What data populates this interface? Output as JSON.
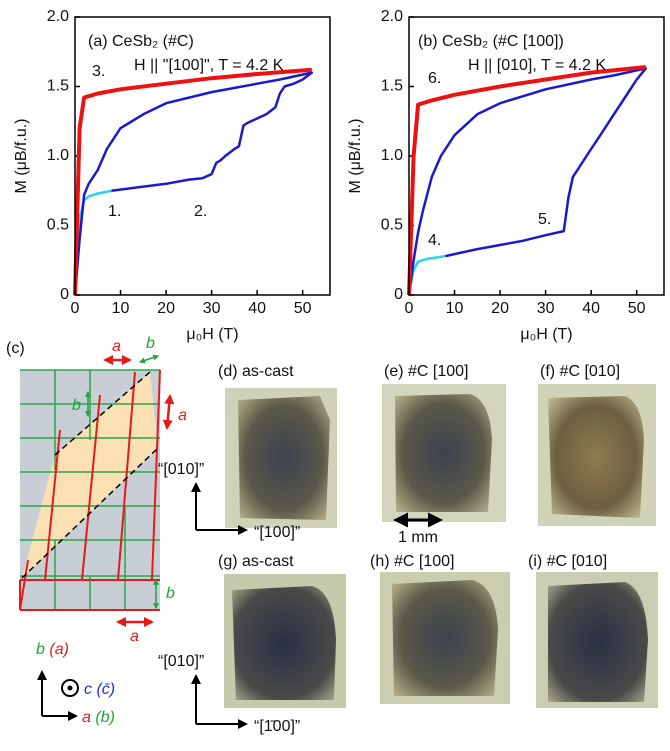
{
  "chart_data": [
    {
      "type": "line",
      "title": "(a) CeSb₂ (#C)",
      "subtitle": "H || \"[100]\", T = 4.2 K",
      "x_label": "μ₀H (T)",
      "y_label": "M (μB/f.u.)",
      "xlim": [
        0,
        56
      ],
      "ylim": [
        0,
        2.0
      ],
      "xticks": [
        0,
        10,
        20,
        30,
        40,
        50
      ],
      "yticks": [
        0,
        0.5,
        {
          "value": 1.0,
          "label": "1.0"
        },
        1.5,
        {
          "value": 2.0,
          "label": "2.0"
        }
      ],
      "series": [
        {
          "name": "1.",
          "color": "#2ad4ec",
          "x": [
            0,
            0.5,
            1,
            2,
            3,
            5,
            8
          ],
          "values": [
            0,
            0.3,
            0.55,
            0.68,
            0.71,
            0.73,
            0.75
          ]
        },
        {
          "name": "2.",
          "color": "#1a1acc",
          "x": [
            8,
            15,
            20,
            25,
            28,
            30,
            31,
            32,
            33,
            35,
            36,
            37,
            38,
            40,
            42,
            44,
            45,
            46,
            48,
            50,
            52,
            45,
            40,
            30,
            20,
            15,
            10,
            7,
            5,
            3,
            2,
            1,
            0
          ],
          "values": [
            0.75,
            0.78,
            0.8,
            0.83,
            0.84,
            0.87,
            0.95,
            0.97,
            1.0,
            1.05,
            1.07,
            1.22,
            1.24,
            1.27,
            1.3,
            1.35,
            1.45,
            1.5,
            1.52,
            1.55,
            1.6,
            1.55,
            1.52,
            1.46,
            1.38,
            1.3,
            1.2,
            1.05,
            0.9,
            0.8,
            0.72,
            0.4,
            0
          ]
        },
        {
          "name": "3.",
          "color": "#ee1111",
          "x": [
            0,
            1,
            2,
            5,
            10,
            20,
            30,
            40,
            52
          ],
          "values": [
            0,
            1.2,
            1.42,
            1.45,
            1.48,
            1.52,
            1.56,
            1.59,
            1.62
          ]
        }
      ]
    },
    {
      "type": "line",
      "title": "(b) CeSb₂ (#C [100])",
      "subtitle": "H || [010], T = 4.2 K",
      "x_label": "μ₀H (T)",
      "y_label": "M (μB/f.u.)",
      "xlim": [
        0,
        56
      ],
      "ylim": [
        0,
        2.0
      ],
      "xticks": [
        0,
        10,
        20,
        30,
        40,
        50
      ],
      "yticks": [
        0,
        0.5,
        {
          "value": 1.0,
          "label": "1.0"
        },
        1.5,
        {
          "value": 2.0,
          "label": "2.0"
        }
      ],
      "series": [
        {
          "name": "4.",
          "color": "#2ad4ec",
          "x": [
            0,
            0.5,
            1,
            2,
            4,
            8
          ],
          "values": [
            0,
            0.1,
            0.18,
            0.24,
            0.26,
            0.28
          ]
        },
        {
          "name": "5.",
          "color": "#1a1acc",
          "x": [
            8,
            15,
            20,
            25,
            30,
            34,
            35,
            36,
            38,
            40,
            42,
            45,
            48,
            50,
            52,
            45,
            40,
            30,
            20,
            15,
            10,
            7,
            5,
            3,
            2,
            1,
            0
          ],
          "values": [
            0.28,
            0.33,
            0.36,
            0.39,
            0.43,
            0.46,
            0.7,
            0.85,
            0.95,
            1.05,
            1.15,
            1.3,
            1.45,
            1.55,
            1.63,
            1.58,
            1.55,
            1.48,
            1.38,
            1.3,
            1.15,
            1.0,
            0.85,
            0.6,
            0.45,
            0.25,
            0
          ]
        },
        {
          "name": "6.",
          "color": "#ee1111",
          "x": [
            0,
            1,
            2,
            5,
            10,
            20,
            30,
            40,
            52
          ],
          "values": [
            0,
            1.0,
            1.37,
            1.4,
            1.44,
            1.5,
            1.55,
            1.6,
            1.64
          ]
        }
      ]
    }
  ],
  "figure": {
    "panel_c": "(c)",
    "lattice_a": "a",
    "lattice_b": "b",
    "photos": [
      "(d) as-cast",
      "(e) #C [100]",
      "(f) #C [010]",
      "(g) as-cast",
      "(h) #C [100]",
      "(i) #C [010]"
    ],
    "dir_010": "“[010]”",
    "dir_100": "“[100]”",
    "dir_m100": "“[1̄00]”",
    "scale": "1 mm",
    "axes_legend": {
      "b": "b",
      "b_paren": "(a)",
      "c": "c",
      "c_paren": "(c̄)",
      "a": "a",
      "a_paren": "(b)"
    }
  }
}
